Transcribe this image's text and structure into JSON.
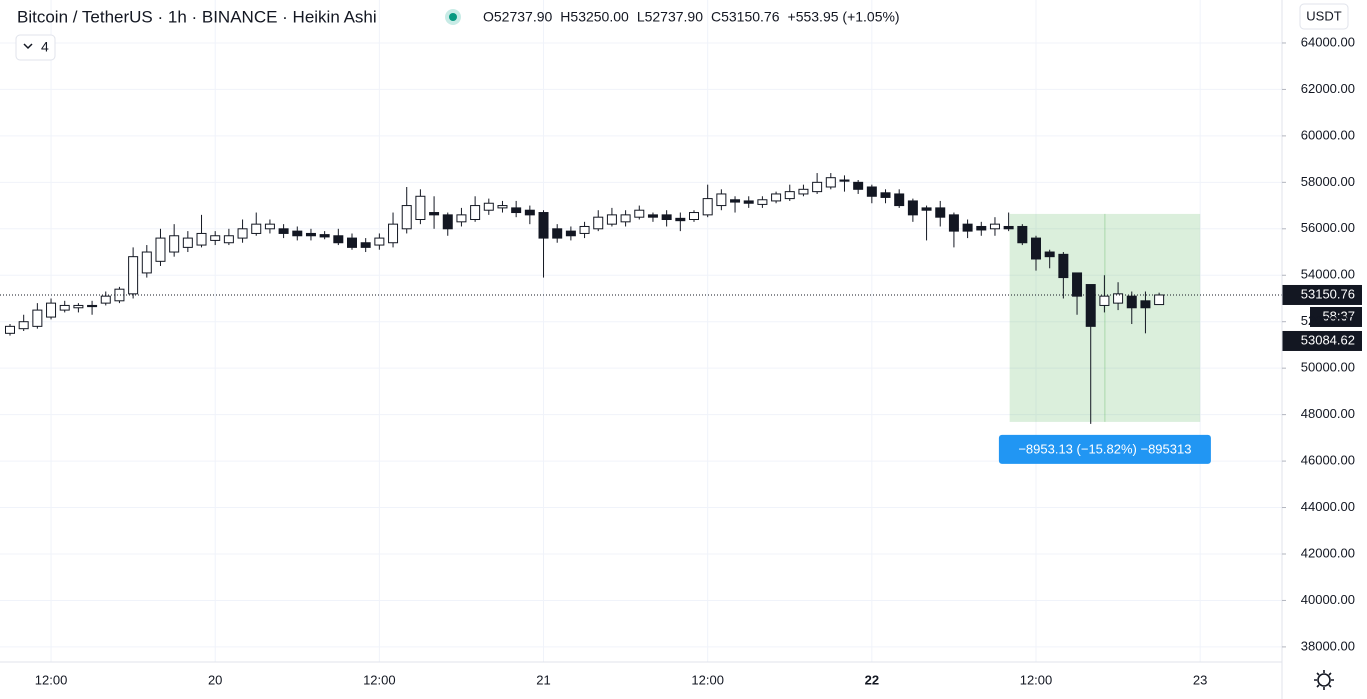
{
  "header": {
    "title": "Bitcoin / TetherUS · 1h · BINANCE · Heikin Ashi",
    "ohlc": [
      "O52737.90",
      "H53250.00",
      "L52737.90",
      "C53150.76",
      "+553.95 (+1.05%)"
    ],
    "indicators": "4",
    "currency": "USDT"
  },
  "chart_data": {
    "type": "candlestick",
    "categories": [
      null,
      null,
      null,
      "12:00",
      null,
      null,
      null,
      null,
      null,
      null,
      null,
      null,
      null,
      null,
      null,
      "20",
      null,
      null,
      null,
      null,
      null,
      null,
      null,
      null,
      null,
      null,
      null,
      "12:00",
      null,
      null,
      null,
      null,
      null,
      null,
      null,
      null,
      null,
      null,
      null,
      "21",
      null,
      null,
      null,
      null,
      null,
      null,
      null,
      null,
      null,
      null,
      null,
      "12:00",
      null,
      null,
      null,
      null,
      null,
      null,
      null,
      null,
      null,
      null,
      null,
      "22",
      null,
      null,
      null,
      null,
      null,
      null,
      null,
      null,
      null,
      null,
      null,
      "12:00",
      null,
      null,
      null,
      null,
      null,
      null,
      null,
      null,
      null,
      null,
      null,
      "23"
    ],
    "open": [
      51500,
      51700,
      51800,
      52200,
      52500,
      52600,
      52700,
      52800,
      52900,
      53200,
      54100,
      54600,
      55000,
      55200,
      55300,
      55500,
      55400,
      55600,
      55800,
      56000,
      56000,
      55900,
      55800,
      55750,
      55700,
      55600,
      55400,
      55300,
      55400,
      56000,
      56400,
      56700,
      56600,
      56300,
      56400,
      56800,
      56900,
      56900,
      56800,
      56700,
      56000,
      55900,
      55800,
      56000,
      56200,
      56300,
      56500,
      56600,
      56600,
      56450,
      56400,
      56600,
      57000,
      57250,
      57200,
      57050,
      57200,
      57300,
      57500,
      57600,
      57800,
      58100,
      58000,
      57800,
      57550,
      57500,
      57200,
      56900,
      56900,
      56600,
      56200,
      56100,
      56000,
      56100,
      56100,
      55600,
      55000,
      54900,
      54100,
      53600,
      52700,
      52800,
      53100,
      52900,
      52737.9,
      null,
      null,
      null
    ],
    "high": [
      51900,
      52300,
      52800,
      53000,
      52900,
      52800,
      52900,
      53300,
      53500,
      55200,
      55300,
      56000,
      56200,
      55900,
      56600,
      55900,
      56000,
      56400,
      56700,
      56400,
      56200,
      56100,
      56000,
      55900,
      56000,
      55800,
      55600,
      55800,
      56700,
      57800,
      57700,
      57400,
      56700,
      56900,
      57400,
      57300,
      57200,
      57200,
      57000,
      56800,
      56200,
      56100,
      56300,
      56800,
      56900,
      56800,
      57000,
      56700,
      56800,
      56700,
      56800,
      57900,
      57700,
      57400,
      57400,
      57400,
      57600,
      57900,
      57900,
      58400,
      58400,
      58300,
      58100,
      57900,
      57700,
      57700,
      57300,
      57000,
      57200,
      56700,
      56400,
      56300,
      56500,
      56700,
      56200,
      55700,
      55100,
      55000,
      54100,
      53600,
      54000,
      53700,
      53300,
      53300,
      53250,
      null,
      null,
      null
    ],
    "low": [
      51400,
      51600,
      51700,
      52100,
      52400,
      52400,
      52300,
      52700,
      52800,
      53000,
      53900,
      54400,
      54800,
      55000,
      55200,
      55300,
      55300,
      55400,
      55700,
      55800,
      55600,
      55500,
      55500,
      55550,
      55300,
      55100,
      55000,
      55100,
      55200,
      55800,
      56200,
      56000,
      55700,
      56100,
      56300,
      56600,
      56700,
      56500,
      56200,
      53900,
      55400,
      55500,
      55600,
      55900,
      56100,
      56100,
      56400,
      56300,
      56100,
      55900,
      56300,
      56500,
      56800,
      56700,
      56900,
      56900,
      57100,
      57200,
      57400,
      57500,
      57700,
      57600,
      57500,
      57100,
      57100,
      56900,
      56300,
      55500,
      56100,
      55200,
      55600,
      55700,
      55700,
      55900,
      55300,
      54200,
      54300,
      53000,
      52300,
      47600,
      52400,
      52500,
      51900,
      51500,
      52737.9,
      null,
      null,
      null
    ],
    "close": [
      51800,
      52000,
      52500,
      52800,
      52700,
      52700,
      52650,
      53100,
      53400,
      54800,
      55000,
      55600,
      55700,
      55600,
      55800,
      55700,
      55700,
      56000,
      56200,
      56200,
      55800,
      55700,
      55700,
      55650,
      55400,
      55200,
      55200,
      55600,
      56200,
      57000,
      57400,
      56600,
      56000,
      56600,
      57000,
      57100,
      57000,
      56700,
      56600,
      55600,
      55600,
      55700,
      56100,
      56500,
      56600,
      56600,
      56800,
      56500,
      56400,
      56350,
      56700,
      57300,
      57500,
      57150,
      57100,
      57250,
      57500,
      57600,
      57700,
      58000,
      58200,
      58050,
      57700,
      57400,
      57350,
      57000,
      56600,
      56800,
      56500,
      55900,
      55900,
      55950,
      56200,
      56000,
      55400,
      54700,
      54800,
      53900,
      53100,
      51800,
      53100,
      53200,
      52600,
      52600,
      53150.76,
      null,
      null,
      null
    ],
    "up_color": "#ffffff",
    "down_color": "#131722",
    "ylim": [
      37350,
      65850
    ],
    "yticks": [
      {
        "value": 38000,
        "label": "38000.00"
      },
      {
        "value": 40000,
        "label": "40000.00"
      },
      {
        "value": 42000,
        "label": "42000.00"
      },
      {
        "value": 44000,
        "label": "44000.00"
      },
      {
        "value": 46000,
        "label": "46000.00"
      },
      {
        "value": 48000,
        "label": "48000.00"
      },
      {
        "value": 50000,
        "label": "50000.00"
      },
      {
        "value": 52000,
        "label": "52000.00"
      },
      {
        "value": 54000,
        "label": "54000.00"
      },
      {
        "value": 56000,
        "label": "56000.00"
      },
      {
        "value": 58000,
        "label": "58000.00"
      },
      {
        "value": 60000,
        "label": "60000.00"
      },
      {
        "value": 62000,
        "label": "62000.00"
      },
      {
        "value": 64000,
        "label": "64000.00"
      }
    ],
    "grid": true,
    "current_price": 53150.76,
    "countdown": "58:37",
    "marker_price": 53084.62,
    "measure": {
      "from": 56640.0,
      "to": 47686.87,
      "x_from": 73,
      "x_to": 87,
      "label": "−8953.13 (−15.82%) −895313",
      "color": "#4caf50"
    }
  }
}
